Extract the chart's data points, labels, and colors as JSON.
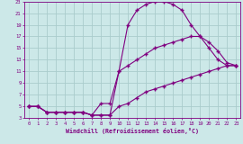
{
  "xlabel": "Windchill (Refroidissement éolien,°C)",
  "bg_color": "#cce8e8",
  "line_color": "#800080",
  "grid_color": "#aacccc",
  "xlim": [
    -0.5,
    23.5
  ],
  "ylim": [
    3,
    23
  ],
  "xticks": [
    0,
    1,
    2,
    3,
    4,
    5,
    6,
    7,
    8,
    9,
    10,
    11,
    12,
    13,
    14,
    15,
    16,
    17,
    18,
    19,
    20,
    21,
    22,
    23
  ],
  "yticks": [
    3,
    5,
    7,
    9,
    11,
    13,
    15,
    17,
    19,
    21,
    23
  ],
  "curve1_x": [
    0,
    1,
    2,
    3,
    4,
    5,
    6,
    7,
    8,
    9,
    10,
    11,
    12,
    13,
    14,
    15,
    16,
    17,
    18,
    19,
    20,
    21,
    22,
    23
  ],
  "curve1_y": [
    5,
    5,
    4,
    4,
    4,
    4,
    4,
    3.5,
    3.5,
    3.5,
    11,
    19,
    21.5,
    22.5,
    23,
    23,
    22.5,
    21.5,
    19,
    17,
    15,
    13,
    12,
    12
  ],
  "curve2_x": [
    0,
    1,
    2,
    3,
    4,
    5,
    6,
    7,
    8,
    9,
    10,
    11,
    12,
    13,
    14,
    15,
    16,
    17,
    18,
    19,
    20,
    21,
    22,
    23
  ],
  "curve2_y": [
    5,
    5,
    4,
    4,
    4,
    4,
    4,
    3.5,
    5.5,
    5.5,
    11,
    12,
    13,
    14,
    15,
    15.5,
    16,
    16.5,
    17,
    17,
    16,
    14.5,
    12.5,
    12
  ],
  "curve3_x": [
    0,
    1,
    2,
    3,
    4,
    5,
    6,
    7,
    8,
    9,
    10,
    11,
    12,
    13,
    14,
    15,
    16,
    17,
    18,
    19,
    20,
    21,
    22,
    23
  ],
  "curve3_y": [
    5,
    5,
    4,
    4,
    4,
    4,
    4,
    3.5,
    3.5,
    3.5,
    5,
    5.5,
    6.5,
    7.5,
    8,
    8.5,
    9,
    9.5,
    10,
    10.5,
    11,
    11.5,
    12,
    12
  ]
}
